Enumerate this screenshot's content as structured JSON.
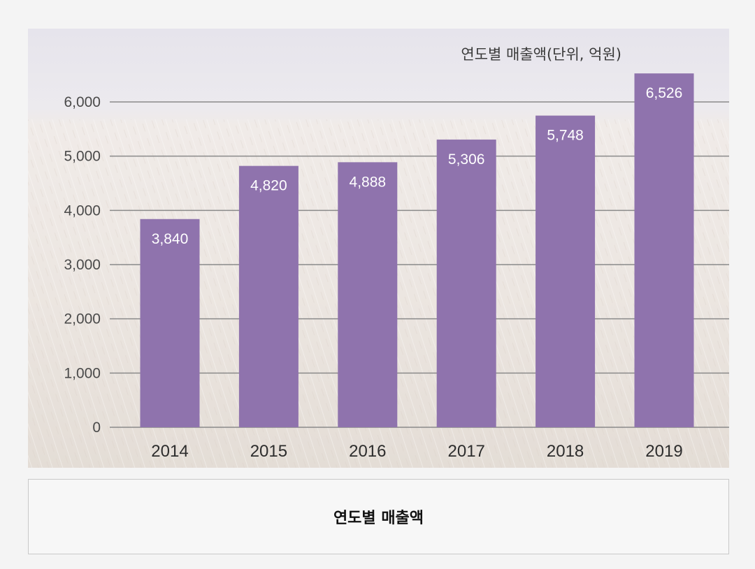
{
  "chart_data": {
    "type": "bar",
    "title": "연도별 매출액",
    "unit_label": "연도별 매출액(단위, 억원)",
    "categories": [
      "2014",
      "2015",
      "2016",
      "2017",
      "2018",
      "2019"
    ],
    "values": [
      3840,
      4820,
      4888,
      5306,
      5748,
      6526
    ],
    "value_labels": [
      "3,840",
      "4,820",
      "4,888",
      "5,306",
      "5,748",
      "6,526"
    ],
    "yticks": [
      0,
      1000,
      2000,
      3000,
      4000,
      5000,
      6000
    ],
    "ytick_labels": [
      "0",
      "1,000",
      "2,000",
      "3,000",
      "4,000",
      "5,000",
      "6,000"
    ],
    "ylim": [
      0,
      6800
    ],
    "xlabel": "",
    "ylabel": "",
    "grid": true,
    "bar_color": "#8f73ad"
  },
  "caption": "연도별 매출액"
}
